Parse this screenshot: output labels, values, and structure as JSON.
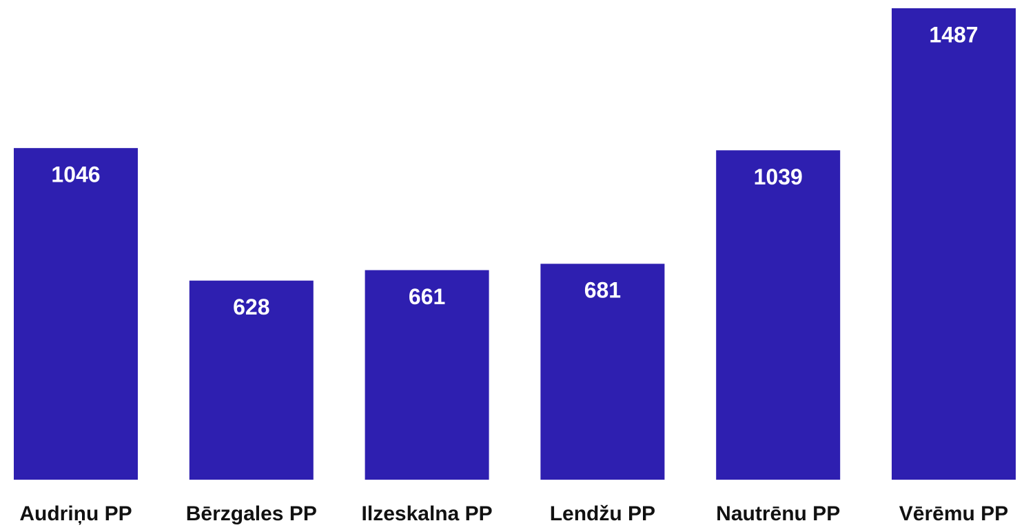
{
  "chart_data": {
    "type": "bar",
    "categories": [
      "Audriņu PP",
      "Bērzgales PP",
      "Ilzeskalna PP",
      "Lendžu PP",
      "Nautrēnu PP",
      "Vērēmu PP"
    ],
    "values": [
      1046,
      628,
      661,
      681,
      1039,
      1487
    ],
    "color": "#2e1fb0"
  }
}
